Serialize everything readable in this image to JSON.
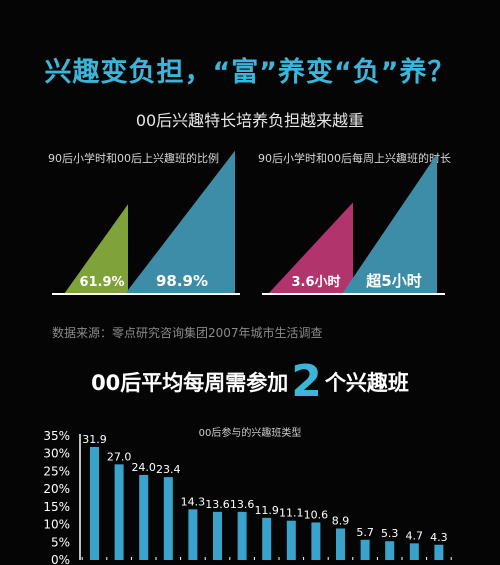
{
  "headline": "兴趣变负担，“富”养变“负”养？",
  "subtitle": "00后兴趣特长培养负担越来越重",
  "source": "数据来源：零点研究咨询集团2007年城市生活调查",
  "section_title": {
    "before": "00后平均每周需参加",
    "number": "2",
    "after": "个兴趣班"
  },
  "colors": {
    "accent": "#3db5d8",
    "olive": "#7fa23a",
    "magenta": "#b2346c",
    "teal": "#3e8da8",
    "bar": "#3aa3cc"
  },
  "chart_data": [
    {
      "type": "area",
      "title": "90后小学时和00后上兴趣班的比例",
      "series": [
        {
          "value": 61.9,
          "label": "61.9%",
          "color": "#7fa23a"
        },
        {
          "value": 98.9,
          "label": "98.9%",
          "color": "#3e8da8"
        }
      ],
      "max": 100
    },
    {
      "type": "area",
      "title": "90后小学时和00后每周上兴趣班的时长",
      "series": [
        {
          "value": 3.6,
          "label": "3.6小时",
          "color": "#b2346c"
        },
        {
          "value": 5.5,
          "label": "超5小时",
          "color": "#3e8da8"
        }
      ],
      "max": 5.5
    },
    {
      "type": "bar",
      "title": "00后参与的兴趣班类型",
      "values": [
        31.9,
        27.0,
        24.0,
        23.4,
        14.3,
        13.6,
        13.6,
        11.9,
        11.1,
        10.6,
        8.9,
        5.7,
        5.3,
        4.7,
        4.3
      ],
      "value_labels": [
        "31.9",
        "27.0",
        "24.0",
        "23.4",
        "14.3",
        "13.6",
        "13.6",
        "11.9",
        "11.1",
        "10.6",
        "8.9",
        "5.7",
        "5.3",
        "4.7",
        "4.3"
      ],
      "yticks": [
        "35%",
        "30%",
        "25%",
        "20%",
        "15%",
        "10%",
        "5%",
        "0%"
      ],
      "ylim": [
        0,
        35
      ]
    }
  ]
}
